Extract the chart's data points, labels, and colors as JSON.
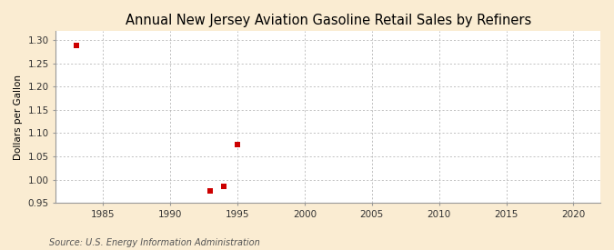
{
  "title": "Annual New Jersey Aviation Gasoline Retail Sales by Refiners",
  "ylabel": "Dollars per Gallon",
  "source": "Source: U.S. Energy Information Administration",
  "outer_background": "#faecd2",
  "inner_background": "#ffffff",
  "data_points": [
    {
      "year": 1983,
      "value": 1.289
    },
    {
      "year": 1993,
      "value": 0.976
    },
    {
      "year": 1994,
      "value": 0.986
    },
    {
      "year": 1995,
      "value": 1.075
    }
  ],
  "marker_color": "#cc0000",
  "marker_size": 4,
  "xlim": [
    1981.5,
    2022
  ],
  "ylim": [
    0.95,
    1.32
  ],
  "xticks": [
    1985,
    1990,
    1995,
    2000,
    2005,
    2010,
    2015,
    2020
  ],
  "yticks": [
    0.95,
    1.0,
    1.05,
    1.1,
    1.15,
    1.2,
    1.25,
    1.3
  ],
  "grid_color": "#aaaaaa",
  "title_fontsize": 10.5,
  "axis_label_fontsize": 7.5,
  "tick_fontsize": 7.5,
  "source_fontsize": 7
}
